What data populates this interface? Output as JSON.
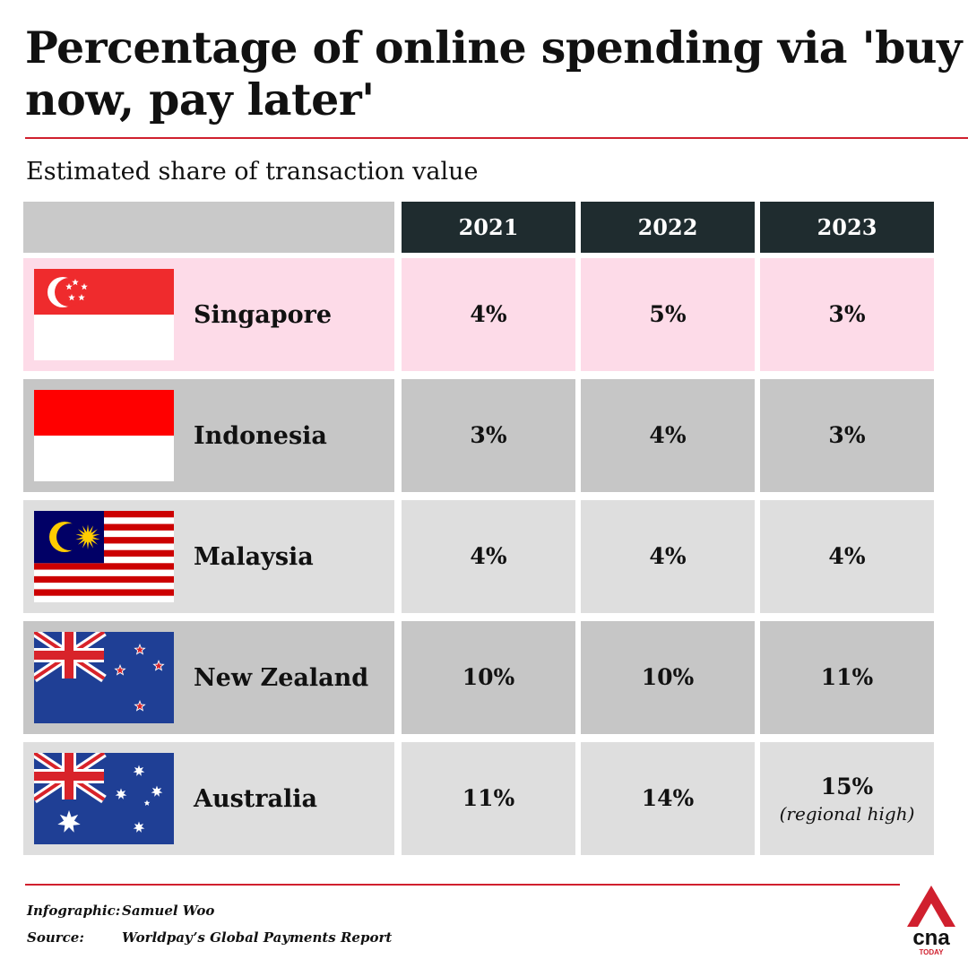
{
  "title": "Percentage of online spending via 'buy now, pay later'",
  "subtitle": "Estimated share of transaction value",
  "chart_data": {
    "type": "table",
    "columns": [
      "2021",
      "2022",
      "2023"
    ],
    "rows": [
      {
        "country": "Singapore",
        "flag": "singapore-flag",
        "values": [
          "4%",
          "5%",
          "3%"
        ],
        "note": ""
      },
      {
        "country": "Indonesia",
        "flag": "indonesia-flag",
        "values": [
          "3%",
          "4%",
          "3%"
        ],
        "note": ""
      },
      {
        "country": "Malaysia",
        "flag": "malaysia-flag",
        "values": [
          "4%",
          "4%",
          "4%"
        ],
        "note": ""
      },
      {
        "country": "New Zealand",
        "flag": "new-zealand-flag",
        "values": [
          "10%",
          "10%",
          "11%"
        ],
        "note": ""
      },
      {
        "country": "Australia",
        "flag": "australia-flag",
        "values": [
          "11%",
          "14%",
          "15%"
        ],
        "note": "(regional high)"
      }
    ]
  },
  "footer": {
    "infographic_label": "Infographic:",
    "infographic_value": "Samuel Woo",
    "source_label": "Source:",
    "source_value": "Worldpay’s Global Payments Report"
  },
  "logo": {
    "text": "cna",
    "sub": "TODAY"
  },
  "colors": {
    "accent_red": "#d0202e",
    "header_dark": "#1f2c2f",
    "highlight_pink": "#fddbe8",
    "row_dark": "#c6c6c6",
    "row_light": "#dedede",
    "header_blank": "#c9c9c9"
  }
}
